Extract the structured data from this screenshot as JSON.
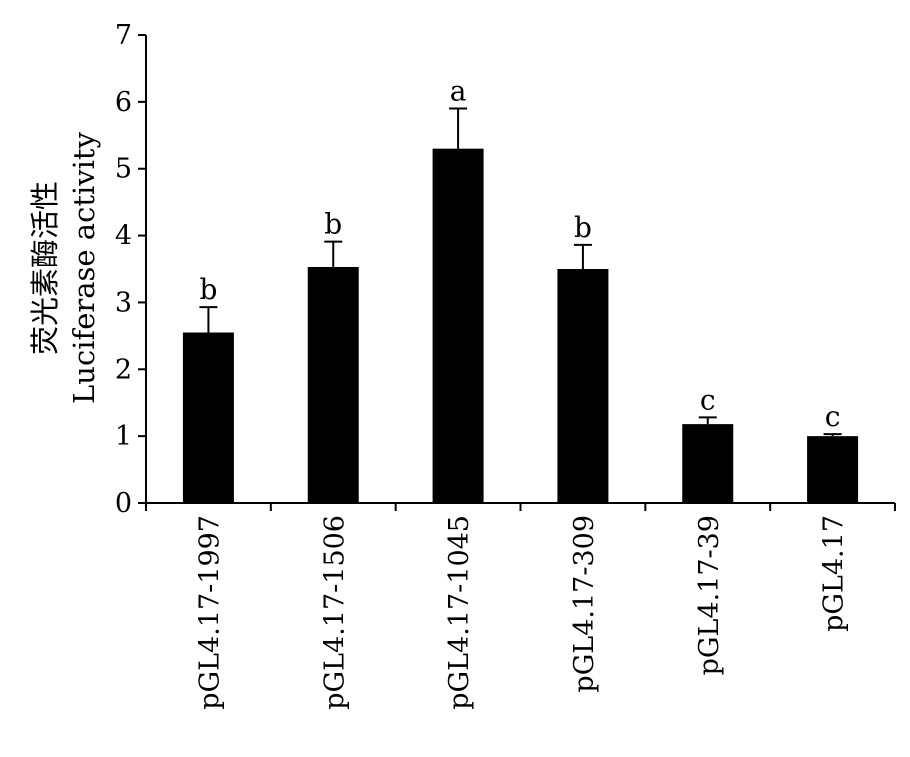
{
  "chart_data": {
    "type": "bar",
    "title": "",
    "xlabel": "",
    "ylabel_cn": "荧光素酶活性",
    "ylabel_en": "Luciferase activity",
    "categories": [
      "pGL4.17-1997",
      "pGL4.17-1506",
      "pGL4.17-1045",
      "pGL4.17-309",
      "pGL4.17-39",
      "pGL4.17"
    ],
    "values": [
      2.55,
      3.53,
      5.3,
      3.5,
      1.18,
      1.0
    ],
    "errors": [
      0.38,
      0.38,
      0.6,
      0.36,
      0.1,
      0.03
    ],
    "significance": [
      "b",
      "b",
      "a",
      "b",
      "c",
      "c"
    ],
    "ylim": [
      0,
      7
    ],
    "yticks": [
      0,
      1,
      2,
      3,
      4,
      5,
      6,
      7
    ],
    "grid": false,
    "bar_color": "#000000"
  }
}
